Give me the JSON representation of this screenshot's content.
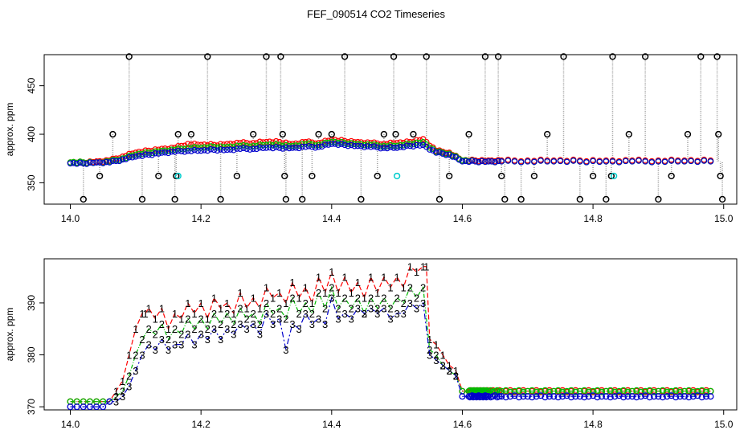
{
  "page": {
    "title": "FEF_090514  CO2 Timeseries"
  },
  "colors": {
    "series1": "#ff0000",
    "series2": "#00bb00",
    "series3": "#0000cc",
    "outlier": "#000000",
    "flagged": "#00cccc",
    "connector": "#999999"
  },
  "chart_data": [
    {
      "type": "scatter",
      "title": "",
      "xlabel": "",
      "ylabel": "approx. ppm",
      "xlim": [
        13.96,
        15.02
      ],
      "ylim": [
        328,
        482
      ],
      "xticks": [
        14.0,
        14.2,
        14.4,
        14.6,
        14.8,
        15.0
      ],
      "xtick_labels": [
        "14.0",
        "14.2",
        "14.4",
        "14.6",
        "14.8",
        "15.0"
      ],
      "yticks": [
        350,
        400,
        450
      ],
      "ytick_labels": [
        "350",
        "400",
        "450"
      ],
      "grid": false,
      "series": [
        {
          "marker": "circle",
          "color": "red",
          "x": [
            14.0,
            14.02,
            14.04,
            14.06,
            14.08,
            14.1,
            14.12,
            14.14,
            14.16,
            14.18,
            14.2,
            14.22,
            14.24,
            14.26,
            14.28,
            14.3,
            14.32,
            14.34,
            14.36,
            14.38,
            14.4,
            14.42,
            14.44,
            14.46,
            14.48,
            14.5,
            14.52,
            14.54,
            14.56,
            14.58,
            14.6,
            14.62,
            14.64,
            14.66,
            14.7,
            14.74,
            14.78,
            14.82,
            14.86,
            14.9,
            14.94,
            14.98
          ],
          "y": [
            371,
            371,
            372,
            373,
            377,
            381,
            383,
            385,
            386,
            390,
            389,
            389,
            390,
            391,
            391,
            392,
            392,
            390,
            392,
            391,
            394,
            393,
            392,
            391,
            390,
            391,
            392,
            395,
            383,
            381,
            373,
            373,
            373,
            373,
            373,
            373,
            373,
            373,
            373,
            373,
            373,
            373
          ]
        },
        {
          "marker": "circle",
          "color": "green",
          "x": [
            14.0,
            14.02,
            14.04,
            14.06,
            14.08,
            14.1,
            14.12,
            14.14,
            14.16,
            14.18,
            14.2,
            14.22,
            14.24,
            14.26,
            14.28,
            14.3,
            14.32,
            14.34,
            14.36,
            14.38,
            14.4,
            14.42,
            14.44,
            14.46,
            14.48,
            14.5,
            14.52,
            14.54,
            14.56,
            14.58,
            14.6,
            14.62,
            14.64,
            14.66,
            14.7,
            14.74,
            14.78,
            14.82,
            14.86,
            14.9,
            14.94,
            14.98
          ],
          "y": [
            371,
            371,
            371,
            372,
            375,
            379,
            381,
            383,
            384,
            386,
            386,
            387,
            387,
            388,
            388,
            389,
            389,
            388,
            390,
            389,
            392,
            391,
            390,
            389,
            388,
            388,
            390,
            392,
            382,
            380,
            373,
            372,
            372,
            372,
            372,
            372,
            372,
            372,
            372,
            372,
            372,
            372
          ]
        },
        {
          "marker": "circle",
          "color": "blue",
          "x": [
            14.0,
            14.02,
            14.04,
            14.06,
            14.08,
            14.1,
            14.12,
            14.14,
            14.16,
            14.18,
            14.2,
            14.22,
            14.24,
            14.26,
            14.28,
            14.3,
            14.32,
            14.34,
            14.36,
            14.38,
            14.4,
            14.42,
            14.44,
            14.46,
            14.48,
            14.5,
            14.52,
            14.54,
            14.56,
            14.58,
            14.6,
            14.62,
            14.64,
            14.66,
            14.7,
            14.74,
            14.78,
            14.82,
            14.86,
            14.9,
            14.94,
            14.98
          ],
          "y": [
            370,
            370,
            371,
            371,
            374,
            377,
            379,
            381,
            382,
            383,
            383,
            384,
            384,
            385,
            385,
            386,
            386,
            386,
            387,
            387,
            390,
            389,
            388,
            387,
            386,
            386,
            388,
            389,
            381,
            379,
            372,
            372,
            372,
            372,
            372,
            372,
            372,
            372,
            372,
            372,
            372,
            372
          ]
        },
        {
          "marker": "circle",
          "color": "black",
          "x": [
            14.02,
            14.045,
            14.065,
            14.09,
            14.11,
            14.135,
            14.16,
            14.162,
            14.165,
            14.185,
            14.21,
            14.23,
            14.255,
            14.28,
            14.3,
            14.322,
            14.325,
            14.328,
            14.33,
            14.355,
            14.37,
            14.38,
            14.4,
            14.42,
            14.445,
            14.47,
            14.48,
            14.495,
            14.498,
            14.525,
            14.545,
            14.565,
            14.58,
            14.61,
            14.635,
            14.655,
            14.66,
            14.665,
            14.69,
            14.71,
            14.73,
            14.755,
            14.78,
            14.8,
            14.82,
            14.828,
            14.83,
            14.855,
            14.88,
            14.9,
            14.92,
            14.945,
            14.965,
            14.99,
            14.992,
            14.995,
            14.998
          ],
          "y": [
            333,
            357,
            400,
            480,
            333,
            357,
            333,
            357,
            400,
            400,
            480,
            333,
            357,
            400,
            480,
            480,
            400,
            357,
            333,
            333,
            357,
            400,
            400,
            480,
            333,
            357,
            400,
            480,
            400,
            400,
            480,
            333,
            357,
            400,
            480,
            480,
            357,
            333,
            333,
            357,
            400,
            480,
            333,
            357,
            333,
            357,
            480,
            400,
            480,
            333,
            357,
            400,
            480,
            480,
            400,
            357,
            333
          ]
        },
        {
          "marker": "circle",
          "color": "cyan",
          "x": [
            14.165,
            14.5,
            14.832
          ],
          "y": [
            357,
            357,
            357
          ]
        }
      ]
    },
    {
      "type": "line",
      "title": "",
      "xlabel": "",
      "ylabel": "approx. ppm",
      "xlim": [
        13.96,
        15.02
      ],
      "ylim": [
        369.4,
        398.5
      ],
      "xticks": [
        14.0,
        14.2,
        14.4,
        14.6,
        14.8,
        15.0
      ],
      "xtick_labels": [
        "14.0",
        "14.2",
        "14.4",
        "14.6",
        "14.8",
        "15.0"
      ],
      "yticks": [
        370,
        380,
        390
      ],
      "ytick_labels": [
        "370",
        "380",
        "390"
      ],
      "grid": false,
      "series": [
        {
          "marker_label": "1",
          "color": "red",
          "x": [
            14.0,
            14.01,
            14.02,
            14.03,
            14.04,
            14.05,
            14.06,
            14.07,
            14.08,
            14.09,
            14.1,
            14.11,
            14.115,
            14.12,
            14.13,
            14.14,
            14.15,
            14.16,
            14.17,
            14.18,
            14.19,
            14.2,
            14.21,
            14.22,
            14.23,
            14.24,
            14.25,
            14.26,
            14.27,
            14.28,
            14.29,
            14.3,
            14.31,
            14.32,
            14.33,
            14.34,
            14.35,
            14.36,
            14.37,
            14.38,
            14.39,
            14.4,
            14.41,
            14.42,
            14.43,
            14.44,
            14.45,
            14.46,
            14.47,
            14.48,
            14.49,
            14.5,
            14.51,
            14.52,
            14.53,
            14.54,
            14.545,
            14.55,
            14.56,
            14.57,
            14.58,
            14.59,
            14.6,
            14.61,
            14.62,
            14.63,
            14.64,
            14.66,
            14.7,
            14.74,
            14.78,
            14.82,
            14.86,
            14.9,
            14.94,
            14.98
          ],
          "y": [
            371,
            371,
            371,
            371,
            371,
            371,
            371,
            373,
            375,
            380,
            385,
            388,
            388,
            389,
            387,
            389,
            385,
            388,
            387,
            390,
            388,
            390,
            387,
            391,
            389,
            390,
            388,
            392,
            389,
            391,
            389,
            393,
            391,
            392,
            390,
            394,
            391,
            393,
            390,
            395,
            392,
            396,
            392,
            395,
            392,
            394,
            391,
            395,
            392,
            395,
            393,
            395,
            393,
            397,
            396,
            397,
            397,
            383,
            382,
            380,
            378,
            377,
            373,
            373,
            373,
            373,
            373,
            373,
            373,
            373,
            373,
            373,
            373,
            373,
            373,
            373
          ]
        },
        {
          "marker_label": "2",
          "color": "green",
          "x": [
            14.0,
            14.01,
            14.02,
            14.03,
            14.04,
            14.05,
            14.06,
            14.07,
            14.08,
            14.09,
            14.1,
            14.11,
            14.12,
            14.13,
            14.14,
            14.15,
            14.16,
            14.17,
            14.18,
            14.19,
            14.2,
            14.21,
            14.22,
            14.23,
            14.24,
            14.25,
            14.26,
            14.27,
            14.28,
            14.29,
            14.3,
            14.31,
            14.32,
            14.33,
            14.34,
            14.35,
            14.36,
            14.37,
            14.38,
            14.39,
            14.4,
            14.41,
            14.42,
            14.43,
            14.44,
            14.45,
            14.46,
            14.47,
            14.48,
            14.49,
            14.5,
            14.51,
            14.52,
            14.53,
            14.54,
            14.55,
            14.56,
            14.57,
            14.58,
            14.59,
            14.6,
            14.61,
            14.62,
            14.63,
            14.64,
            14.66,
            14.7,
            14.74,
            14.78,
            14.82,
            14.86,
            14.9,
            14.94,
            14.98
          ],
          "y": [
            371,
            371,
            371,
            371,
            371,
            371,
            371,
            372,
            373,
            376,
            380,
            383,
            385,
            384,
            386,
            383,
            385,
            384,
            387,
            385,
            387,
            385,
            388,
            386,
            388,
            386,
            389,
            387,
            388,
            386,
            390,
            388,
            389,
            387,
            391,
            388,
            390,
            388,
            392,
            389,
            393,
            389,
            391,
            389,
            391,
            388,
            391,
            389,
            391,
            389,
            391,
            390,
            393,
            391,
            393,
            381,
            380,
            378,
            377,
            376,
            373,
            373,
            373,
            373,
            373,
            373,
            373,
            373,
            373,
            373,
            373,
            373,
            373,
            373
          ]
        },
        {
          "marker_label": "3",
          "color": "blue",
          "x": [
            14.0,
            14.01,
            14.02,
            14.03,
            14.04,
            14.05,
            14.06,
            14.07,
            14.08,
            14.09,
            14.1,
            14.11,
            14.12,
            14.13,
            14.14,
            14.15,
            14.16,
            14.17,
            14.18,
            14.19,
            14.2,
            14.21,
            14.22,
            14.23,
            14.24,
            14.25,
            14.26,
            14.27,
            14.28,
            14.29,
            14.3,
            14.31,
            14.32,
            14.33,
            14.34,
            14.35,
            14.36,
            14.37,
            14.38,
            14.39,
            14.4,
            14.41,
            14.42,
            14.43,
            14.44,
            14.45,
            14.46,
            14.47,
            14.48,
            14.49,
            14.5,
            14.51,
            14.52,
            14.53,
            14.54,
            14.55,
            14.56,
            14.57,
            14.58,
            14.59,
            14.6,
            14.61,
            14.62,
            14.63,
            14.64,
            14.66,
            14.7,
            14.74,
            14.78,
            14.82,
            14.86,
            14.9,
            14.94,
            14.98
          ],
          "y": [
            370,
            370,
            370,
            370,
            370,
            370,
            371,
            371,
            372,
            374,
            377,
            380,
            382,
            381,
            383,
            381,
            382,
            382,
            384,
            382,
            384,
            383,
            385,
            383,
            385,
            384,
            386,
            385,
            386,
            384,
            388,
            386,
            387,
            381,
            386,
            385,
            388,
            386,
            387,
            386,
            391,
            387,
            388,
            387,
            389,
            388,
            389,
            388,
            389,
            387,
            388,
            388,
            390,
            389,
            390,
            380,
            379,
            378,
            377,
            376,
            372,
            372,
            372,
            372,
            372,
            372,
            372,
            372,
            372,
            372,
            372,
            372,
            372,
            372
          ]
        }
      ]
    }
  ]
}
